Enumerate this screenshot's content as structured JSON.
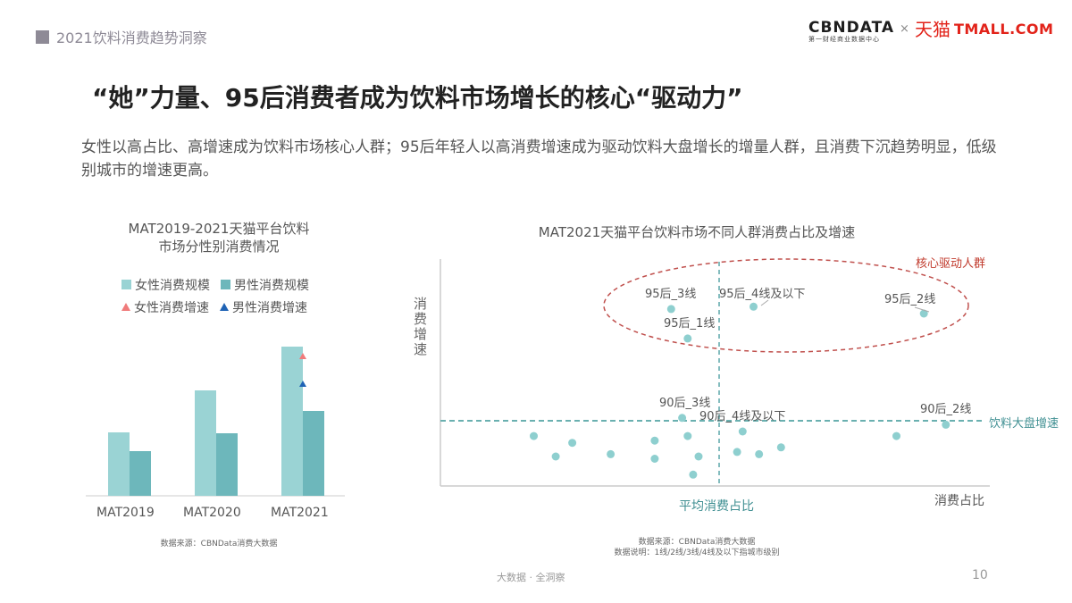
{
  "header": {
    "section_tag": "2021饮料消费趋势洞察",
    "logo_cbn": "CBNDATA",
    "logo_cbn_sub": "第一财经商业数据中心",
    "logo_times": "×",
    "logo_tmall_cn": "天猫",
    "logo_tmall_en": "TMALL.COM"
  },
  "title": "“她”力量、95后消费者成为饮料市场增长的核心“驱动力”",
  "subtitle": "女性以高占比、高增速成为饮料市场核心人群；95后年轻人以高消费增速成为驱动饮料大盘增长的增量人群，且消费下沉趋势明显，低级别城市的增速更高。",
  "footer": {
    "center": "大数据 · 全洞察",
    "page_number": "10"
  },
  "colors": {
    "female_bar": "#9ad3d4",
    "male_bar": "#6db7bb",
    "female_growth": "#f07b7b",
    "male_growth": "#1f63b5",
    "scatter_point": "#8ecfcf",
    "ellipse": "#c0504d",
    "dashed_ref": "#6ab0b0"
  },
  "chart_data": [
    {
      "type": "bar",
      "title": "MAT2019-2021天猫平台饮料市场分性别消费情况",
      "title_lines": [
        "MAT2019-2021天猫平台饮料",
        "市场分性别消费情况"
      ],
      "categories": [
        "MAT2019",
        "MAT2020",
        "MAT2021"
      ],
      "series": [
        {
          "name": "女性消费规模",
          "kind": "bar",
          "values": [
            71,
            118,
            167
          ]
        },
        {
          "name": "男性消费规模",
          "kind": "bar",
          "values": [
            50,
            70,
            95
          ]
        },
        {
          "name": "女性消费增速",
          "kind": "marker",
          "values": [
            null,
            null,
            160
          ]
        },
        {
          "name": "男性消费增速",
          "kind": "marker",
          "values": [
            null,
            null,
            129
          ]
        }
      ],
      "legend": [
        "女性消费规模",
        "男性消费规模",
        "女性消费增速",
        "男性消费增速"
      ],
      "legend_position": "top",
      "grid": false,
      "yaxis_visible": false,
      "note": "relative bar heights in px; no axis values shown",
      "source": "数据来源：CBNData消费大数据"
    },
    {
      "type": "scatter",
      "title": "MAT2021天猫平台饮料市场不同人群消费占比及增速",
      "xlabel": "消费占比",
      "ylabel": "消费增速",
      "xlim": [
        0,
        100
      ],
      "ylim": [
        0,
        100
      ],
      "grid": false,
      "reference_lines": [
        {
          "orientation": "vertical",
          "value": 50,
          "label": "平均消费占比"
        },
        {
          "orientation": "horizontal",
          "value": 29,
          "label": "饮料大盘增速"
        }
      ],
      "annotation": {
        "label": "核心驱动人群",
        "shape": "dashed-ellipse",
        "encloses": [
          "95后_3线",
          "95后_4线及以下",
          "95后_2线",
          "95后_1线"
        ]
      },
      "points": [
        {
          "label": "95后_3线",
          "x": 42,
          "y": 78
        },
        {
          "label": "95后_4线及以下",
          "x": 57,
          "y": 79
        },
        {
          "label": "95后_2线",
          "x": 88,
          "y": 76
        },
        {
          "label": "95后_1线",
          "x": 45,
          "y": 65
        },
        {
          "label": "90后_3线",
          "x": 44,
          "y": 30
        },
        {
          "label": "90后_4线及以下",
          "x": 55,
          "y": 24
        },
        {
          "label": "90后_2线",
          "x": 92,
          "y": 27
        },
        {
          "label": "",
          "x": 17,
          "y": 22
        },
        {
          "label": "",
          "x": 21,
          "y": 13
        },
        {
          "label": "",
          "x": 24,
          "y": 19
        },
        {
          "label": "",
          "x": 31,
          "y": 14
        },
        {
          "label": "",
          "x": 39,
          "y": 20
        },
        {
          "label": "",
          "x": 39,
          "y": 12
        },
        {
          "label": "",
          "x": 45,
          "y": 22
        },
        {
          "label": "",
          "x": 47,
          "y": 13
        },
        {
          "label": "",
          "x": 46,
          "y": 5
        },
        {
          "label": "",
          "x": 54,
          "y": 15
        },
        {
          "label": "",
          "x": 58,
          "y": 14
        },
        {
          "label": "",
          "x": 62,
          "y": 17
        },
        {
          "label": "",
          "x": 83,
          "y": 22
        }
      ],
      "source": "数据来源：CBNData消费大数据",
      "note_text": "数据说明：1线/2线/3线/4线及以下指城市级别"
    }
  ]
}
